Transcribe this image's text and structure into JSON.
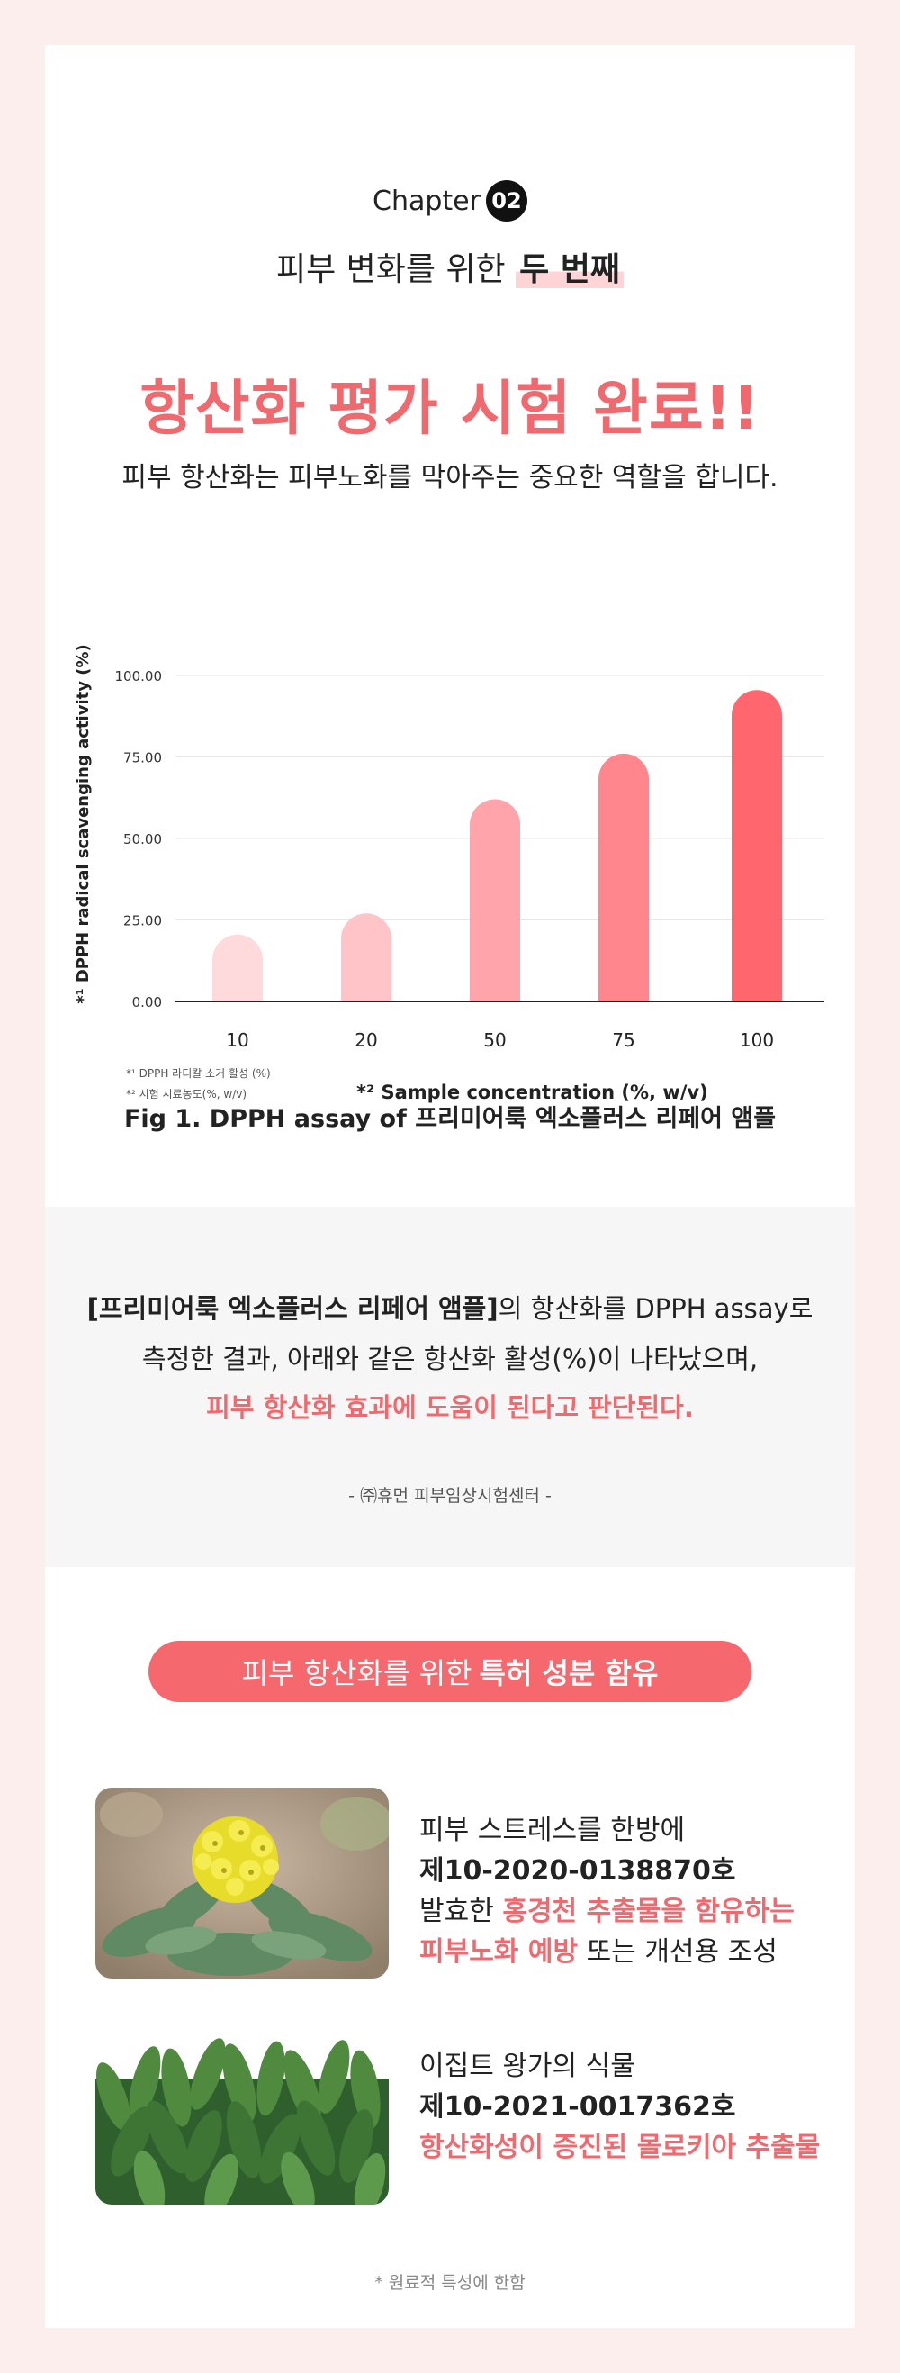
{
  "chapter": {
    "label": "Chapter",
    "number": "02"
  },
  "subtitle": {
    "text": "피부 변화를 위한 ",
    "highlight": "두 번째"
  },
  "title": "항산화 평가 시험 완료!!",
  "description": "피부 항산화는 피부노화를 막아주는 중요한 역할을 합니다.",
  "chart_data": {
    "type": "bar",
    "categories": [
      "10",
      "20",
      "50",
      "75",
      "100"
    ],
    "values": [
      20.5,
      27,
      62,
      76,
      95.5
    ],
    "ylabel": "*¹ DPPH radical scavenging activity (%)",
    "xlabel": "*² Sample concentration (%, w/v)",
    "yticks": [
      "0.00",
      "25.00",
      "50.00",
      "75.00",
      "100.00"
    ],
    "ylim": [
      0,
      100
    ],
    "bar_colors": [
      "#ffdadc",
      "#ffc4c8",
      "#ffa4aa",
      "#ff868c",
      "#ff666d"
    ],
    "notes": [
      "*¹ DPPH 라디칼 소거 활성 (%)",
      "*² 시험 시료농도(%, w/v)"
    ],
    "grid": true
  },
  "figure_caption": "Fig 1. DPPH assay of 프리미어룩 엑소플러스 리페어 앰플",
  "result": {
    "product": "[프리미어룩 엑소플러스 리페어 앰플]",
    "line1_rest": "의 항산화를 DPPH assay로",
    "line2": "측정한 결과, 아래와 같은 항산화 활성(%)이 나타났으며,",
    "line3": "피부 항산화 효과에 도움이 된다고 판단된다.",
    "source": "- ㈜휴먼 피부임상시험센터 -"
  },
  "patent_banner": {
    "normal": "피부 항산화를 위한 ",
    "bold": "특허 성분 함유"
  },
  "patents": [
    {
      "line1": "피부 스트레스를 한방에",
      "number": "제10-2020-0138870호",
      "line3_a": "발효한 ",
      "line3_b": "홍경천 추출물을 함유하는",
      "line4_a": "피부노화 예방",
      "line4_b": " 또는 개선용 조성"
    },
    {
      "line1": "이집트 왕가의 식물",
      "number": "제10-2021-0017362호",
      "line3": "항산화성이 증진된 몰로키아 추출물"
    }
  ],
  "footnote": "* 원료적 특성에 한함"
}
